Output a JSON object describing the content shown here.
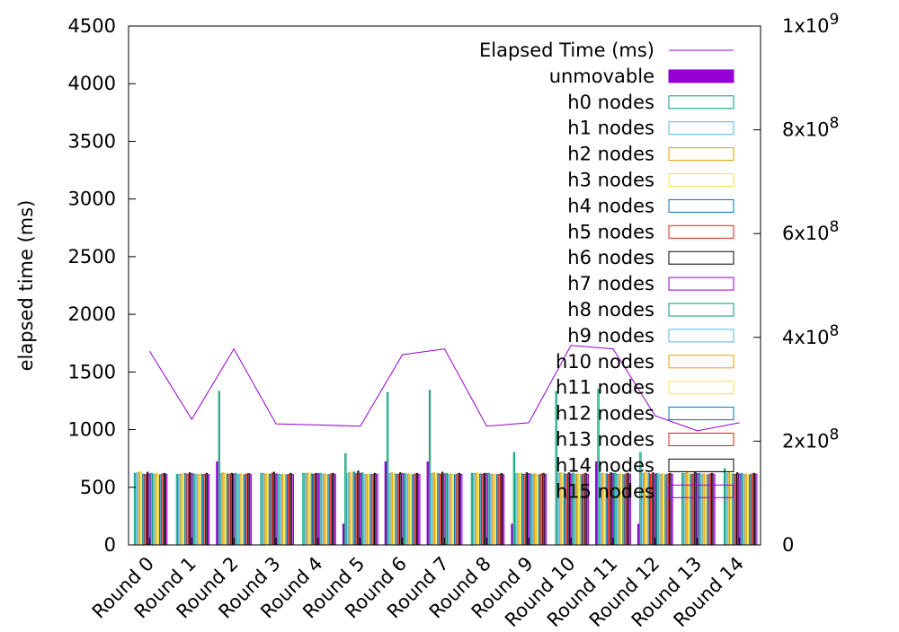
{
  "chart_data": {
    "type": "bar",
    "title": "",
    "xlabel": "",
    "ylabel": "elapsed time (ms)",
    "y2label": "",
    "ylim": [
      0,
      4500
    ],
    "y2lim": [
      0,
      1000000000
    ],
    "grid": false,
    "legend_position": "top-right",
    "yticks": [
      "0",
      "500",
      "1000",
      "1500",
      "2000",
      "2500",
      "3000",
      "3500",
      "4000",
      "4500"
    ],
    "y2ticks": [
      {
        "value": 0,
        "base": "0",
        "exp": ""
      },
      {
        "value": 200000000,
        "base": "2x10",
        "exp": "8"
      },
      {
        "value": 400000000,
        "base": "4x10",
        "exp": "8"
      },
      {
        "value": 600000000,
        "base": "6x10",
        "exp": "8"
      },
      {
        "value": 800000000,
        "base": "8x10",
        "exp": "8"
      },
      {
        "value": 1000000000,
        "base": "1x10",
        "exp": "9"
      }
    ],
    "categories": [
      "Round 0",
      "Round 1",
      "Round 2",
      "Round 3",
      "Round 4",
      "Round 5",
      "Round 6",
      "Round 7",
      "Round 8",
      "Round 9",
      "Round 10",
      "Round 11",
      "Round 12",
      "Round 13",
      "Round 14"
    ],
    "line_series": {
      "name": "Elapsed Time (ms)",
      "color": "#9400d3",
      "values": [
        1680,
        1090,
        1700,
        1050,
        1040,
        1030,
        1650,
        1700,
        1030,
        1060,
        1730,
        1700,
        1120,
        990,
        1060
      ]
    },
    "bar_series": [
      {
        "name": "unmovable",
        "color": "#9400d3",
        "filled": true,
        "values": [
          0,
          0,
          720,
          0,
          0,
          180,
          720,
          720,
          0,
          180,
          0,
          720,
          180,
          0,
          0
        ]
      },
      {
        "name": "h0 nodes",
        "color": "#009e73",
        "filled": false,
        "values": [
          620,
          610,
          1330,
          620,
          620,
          790,
          1320,
          1340,
          620,
          800,
          1330,
          1350,
          800,
          620,
          660
        ]
      },
      {
        "name": "h1 nodes",
        "color": "#56b4e9",
        "filled": false,
        "values": [
          625,
          612,
          620,
          620,
          620,
          620,
          620,
          620,
          618,
          620,
          620,
          620,
          620,
          620,
          620
        ]
      },
      {
        "name": "h2 nodes",
        "color": "#e69f00",
        "filled": false,
        "values": [
          630,
          615,
          625,
          615,
          622,
          630,
          625,
          625,
          622,
          618,
          625,
          622,
          625,
          625,
          625
        ]
      },
      {
        "name": "h3 nodes",
        "color": "#f0e442",
        "filled": false,
        "values": [
          635,
          620,
          618,
          618,
          625,
          625,
          620,
          620,
          620,
          622,
          620,
          620,
          618,
          620,
          618
        ]
      },
      {
        "name": "h4 nodes",
        "color": "#0072b2",
        "filled": false,
        "values": [
          612,
          620,
          615,
          612,
          615,
          632,
          615,
          618,
          615,
          615,
          618,
          615,
          620,
          612,
          615
        ]
      },
      {
        "name": "h5 nodes",
        "color": "#e51e10",
        "filled": false,
        "values": [
          610,
          612,
          612,
          620,
          612,
          618,
          612,
          612,
          612,
          612,
          612,
          612,
          612,
          615,
          612
        ]
      },
      {
        "name": "h6 nodes",
        "color": "#000000",
        "filled": false,
        "values": [
          630,
          625,
          620,
          630,
          620,
          640,
          625,
          630,
          620,
          625,
          625,
          625,
          625,
          630,
          625
        ]
      },
      {
        "name": "h7 nodes",
        "color": "#9400d3",
        "filled": false,
        "values": [
          615,
          618,
          615,
          615,
          618,
          620,
          618,
          615,
          618,
          618,
          615,
          618,
          615,
          618,
          615
        ]
      },
      {
        "name": "h8 nodes",
        "color": "#009e73",
        "filled": false,
        "values": [
          620,
          615,
          620,
          615,
          620,
          625,
          620,
          620,
          620,
          615,
          620,
          620,
          620,
          620,
          620
        ]
      },
      {
        "name": "h9 nodes",
        "color": "#56b4e9",
        "filled": false,
        "values": [
          612,
          610,
          612,
          612,
          612,
          612,
          612,
          612,
          610,
          612,
          612,
          612,
          612,
          612,
          612
        ]
      },
      {
        "name": "h10 nodes",
        "color": "#e69f00",
        "filled": false,
        "values": [
          618,
          612,
          615,
          610,
          615,
          612,
          615,
          615,
          612,
          615,
          615,
          615,
          615,
          615,
          615
        ]
      },
      {
        "name": "h11 nodes",
        "color": "#f0e442",
        "filled": false,
        "values": [
          612,
          615,
          612,
          612,
          612,
          615,
          612,
          612,
          615,
          612,
          612,
          612,
          612,
          612,
          612
        ]
      },
      {
        "name": "h12 nodes",
        "color": "#0072b2",
        "filled": false,
        "values": [
          608,
          610,
          608,
          608,
          610,
          610,
          608,
          608,
          610,
          608,
          608,
          608,
          608,
          608,
          608
        ]
      },
      {
        "name": "h13 nodes",
        "color": "#e51e10",
        "filled": false,
        "values": [
          615,
          612,
          615,
          612,
          615,
          612,
          615,
          615,
          612,
          615,
          615,
          615,
          615,
          615,
          615
        ]
      },
      {
        "name": "h14 nodes",
        "color": "#000000",
        "filled": false,
        "values": [
          620,
          620,
          618,
          620,
          620,
          620,
          620,
          620,
          618,
          620,
          620,
          620,
          620,
          620,
          620
        ]
      },
      {
        "name": "h15 nodes",
        "color": "#9400d3",
        "filled": false,
        "values": [
          612,
          610,
          612,
          610,
          612,
          612,
          612,
          612,
          610,
          612,
          612,
          612,
          612,
          612,
          612
        ]
      }
    ]
  }
}
